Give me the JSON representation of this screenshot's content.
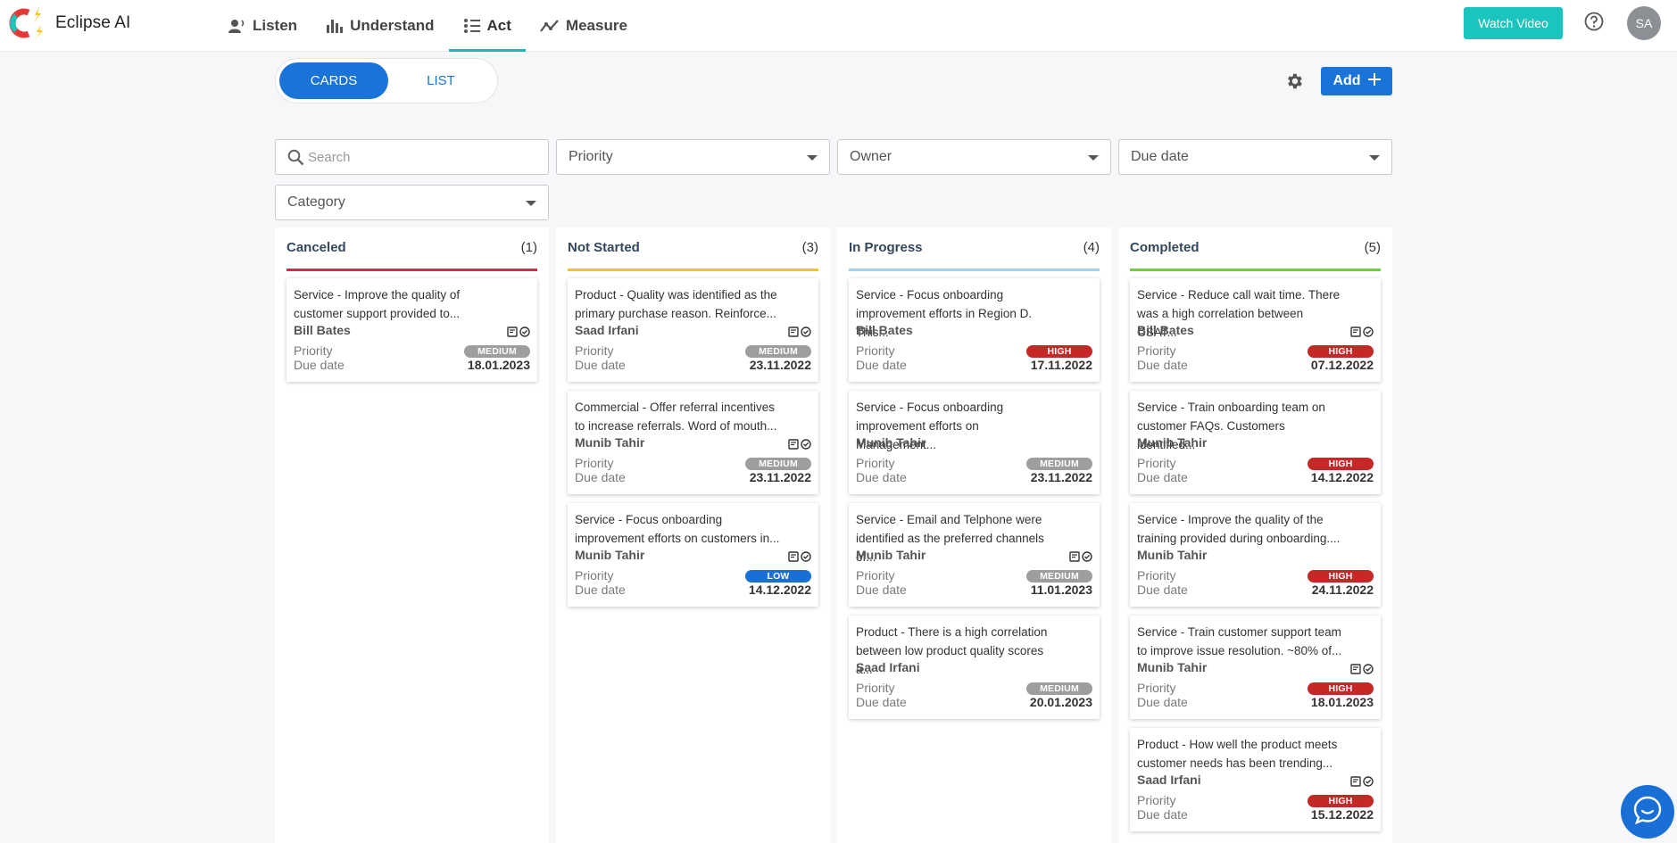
{
  "app": {
    "name": "Eclipse AI"
  },
  "nav": [
    {
      "label": "Listen",
      "icon": "listen-icon"
    },
    {
      "label": "Understand",
      "icon": "bar-chart-icon"
    },
    {
      "label": "Act",
      "icon": "act-icon",
      "active": true
    },
    {
      "label": "Measure",
      "icon": "trend-icon"
    }
  ],
  "header": {
    "watch_video": "Watch Video",
    "avatar_initials": "SA"
  },
  "view_toggle": {
    "cards": "CARDS",
    "list": "LIST",
    "selected": "CARDS"
  },
  "toolbar": {
    "add_label": "Add"
  },
  "filters": {
    "search_placeholder": "Search",
    "priority": "Priority",
    "owner": "Owner",
    "due_date": "Due date",
    "category": "Category"
  },
  "card_labels": {
    "priority": "Priority",
    "due_date": "Due date"
  },
  "colors": {
    "high": "#c62828",
    "medium": "#9e9e9e",
    "low": "#1a6fd6"
  },
  "columns": [
    {
      "title": "Canceled",
      "count": "(1)",
      "color": "#e8204f",
      "cards": [
        {
          "desc": "Service - Improve the quality of customer support provided to...",
          "owner": "Bill Bates",
          "priority": "MEDIUM",
          "due": "18.01.2023",
          "icons": true
        }
      ]
    },
    {
      "title": "Not Started",
      "count": "(3)",
      "color": "#f5c518",
      "cards": [
        {
          "desc": "Product - Quality was identified as the primary purchase reason. Reinforce...",
          "owner": "Saad Irfani",
          "priority": "MEDIUM",
          "due": "23.11.2022",
          "icons": true
        },
        {
          "desc": "Commercial - Offer referral incentives to increase referrals. Word of mouth...",
          "owner": "Munib Tahir",
          "priority": "MEDIUM",
          "due": "23.11.2022",
          "icons": true
        },
        {
          "desc": "Service - Focus onboarding improvement efforts on customers in...",
          "owner": "Munib Tahir",
          "priority": "LOW",
          "due": "14.12.2022",
          "icons": true
        }
      ]
    },
    {
      "title": "In Progress",
      "count": "(4)",
      "color": "#9cd2f2",
      "cards": [
        {
          "desc": "Service - Focus onboarding improvement efforts in Region D. This...",
          "owner": "Bill Bates",
          "priority": "HIGH",
          "due": "17.11.2022",
          "icons": false
        },
        {
          "desc": "Service - Focus onboarding improvement efforts on Management...",
          "owner": "Munib Tahir",
          "priority": "MEDIUM",
          "due": "23.11.2022",
          "icons": false
        },
        {
          "desc": "Service - Email and Telphone were identified as the preferred channels of...",
          "owner": "Munib Tahir",
          "priority": "MEDIUM",
          "due": "11.01.2023",
          "icons": true
        },
        {
          "desc": "Product - There is a high correlation between low product quality scores a...",
          "owner": "Saad Irfani",
          "priority": "MEDIUM",
          "due": "20.01.2023",
          "icons": false
        }
      ]
    },
    {
      "title": "Completed",
      "count": "(5)",
      "color": "#6dd13f",
      "cards": [
        {
          "desc": "Service - Reduce call wait time. There was a high correlation between CSAT...",
          "owner": "Bill Bates",
          "priority": "HIGH",
          "due": "07.12.2022",
          "icons": true
        },
        {
          "desc": "Service - Train onboarding team on customer FAQs. Customers identified...",
          "owner": "Munib Tahir",
          "priority": "HIGH",
          "due": "14.12.2022",
          "icons": false
        },
        {
          "desc": "Service - Improve the quality of the training provided during onboarding....",
          "owner": "Munib Tahir",
          "priority": "HIGH",
          "due": "24.11.2022",
          "icons": false
        },
        {
          "desc": "Service - Train customer support team to improve issue resolution. ~80% of...",
          "owner": "Munib Tahir",
          "priority": "HIGH",
          "due": "18.01.2023",
          "icons": true
        },
        {
          "desc": "Product - How well the product meets customer needs has been trending...",
          "owner": "Saad Irfani",
          "priority": "HIGH",
          "due": "15.12.2022",
          "icons": true
        }
      ]
    }
  ]
}
